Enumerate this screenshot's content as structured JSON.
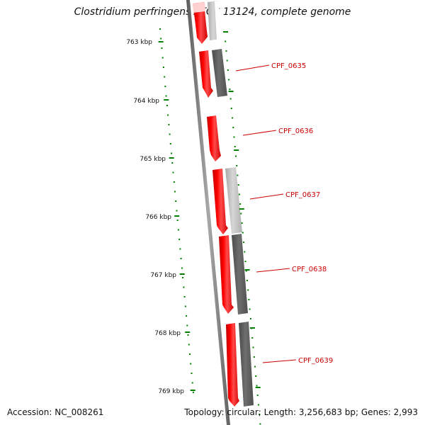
{
  "title": "Clostridium perfringens ATCC 13124, complete genome",
  "accession": "Accession: NC_008261",
  "summary": "Topology: circular; Length: 3,256,683 bp; Genes: 2,993",
  "ticks": [
    "763 kbp",
    "764 kbp",
    "765 kbp",
    "766 kbp",
    "767 kbp",
    "768 kbp",
    "769 kbp"
  ],
  "genes": [
    "CPF_0635",
    "CPF_0636",
    "CPF_0637",
    "CPF_0638",
    "CPF_0639"
  ],
  "colors": {
    "forward": "#ff0000",
    "forward_faded": "#ffc8c8",
    "dark_gray": "#646464",
    "light_gray": "#c0c0c0",
    "tick": "#008000",
    "backbone": "#808080",
    "label": "#cc0000"
  }
}
